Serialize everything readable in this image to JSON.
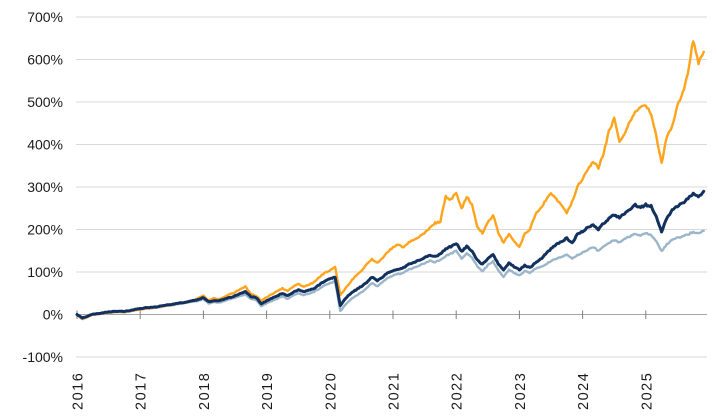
{
  "chart_data": {
    "type": "line",
    "title": "",
    "xlabel": "",
    "ylabel": "",
    "grid": "horizontal",
    "legend_position": "none",
    "ylim": [
      -100,
      700
    ],
    "y_tick_step_pct": 100,
    "y_tick_labels": [
      "700%",
      "600%",
      "500%",
      "400%",
      "300%",
      "200%",
      "100%",
      "0%",
      "-100%"
    ],
    "x_tick_labels": [
      "2016",
      "2017",
      "2018",
      "2019",
      "2020",
      "2021",
      "2022",
      "2023",
      "2024",
      "2025"
    ],
    "x_start_year": 2016,
    "points_per_year": 12,
    "unit": "percent-cumulative-return",
    "colors": {
      "grid": "#d9d9d9",
      "zero_axis": "#a6a6a6",
      "tick_mark": "#7f7f7f",
      "label_text": "#1a1a1a"
    },
    "series": [
      {
        "name": "light-blue-line",
        "color": "#9bb6c9",
        "stroke_width": 2.4,
        "values": [
          0,
          -11,
          -6,
          0,
          1,
          2,
          4,
          5,
          6,
          5,
          7,
          10,
          12,
          14,
          15,
          16,
          18,
          20,
          22,
          24,
          26,
          28,
          30,
          32,
          36,
          26,
          29,
          28,
          32,
          36,
          39,
          44,
          47,
          36,
          34,
          20,
          26,
          32,
          37,
          43,
          37,
          45,
          50,
          46,
          49,
          53,
          61,
          68,
          74,
          78,
          8,
          24,
          36,
          44,
          52,
          62,
          74,
          66,
          76,
          86,
          92,
          95,
          99,
          106,
          110,
          116,
          121,
          127,
          123,
          128,
          138,
          143,
          150,
          132,
          143,
          134,
          113,
          102,
          116,
          125,
          103,
          88,
          106,
          97,
          92,
          102,
          98,
          108,
          112,
          118,
          126,
          132,
          136,
          142,
          131,
          140,
          145,
          152,
          158,
          150,
          160,
          168,
          175,
          170,
          178,
          184,
          190,
          186,
          191,
          188,
          172,
          149,
          165,
          175,
          180,
          184,
          188,
          195,
          190,
          197
        ]
      },
      {
        "name": "orange-line",
        "color": "#ffa41c",
        "stroke_width": 2.4,
        "values": [
          0,
          -10,
          -6,
          0,
          1,
          3,
          5,
          6,
          7,
          6,
          8,
          10,
          12,
          14,
          15,
          17,
          19,
          21,
          23,
          26,
          27,
          29,
          33,
          38,
          44,
          33,
          38,
          36,
          42,
          48,
          52,
          60,
          66,
          48,
          44,
          33,
          40,
          48,
          55,
          62,
          55,
          65,
          72,
          66,
          70,
          76,
          88,
          98,
          104,
          112,
          46,
          62,
          78,
          92,
          102,
          118,
          130,
          121,
          132,
          148,
          158,
          165,
          158,
          170,
          176,
          183,
          192,
          205,
          215,
          218,
          278,
          270,
          288,
          248,
          278,
          258,
          205,
          192,
          215,
          235,
          192,
          168,
          190,
          172,
          158,
          190,
          200,
          235,
          250,
          268,
          285,
          272,
          258,
          240,
          265,
          300,
          320,
          340,
          360,
          345,
          380,
          430,
          460,
          405,
          425,
          455,
          475,
          490,
          495,
          470,
          420,
          355,
          420,
          440,
          490,
          520,
          570,
          645,
          592,
          618
        ]
      },
      {
        "name": "navy-line",
        "color": "#12315e",
        "stroke_width": 3,
        "values": [
          0,
          -8,
          -4,
          1,
          2,
          4,
          6,
          7,
          8,
          7,
          9,
          12,
          14,
          16,
          17,
          18,
          20,
          22,
          24,
          26,
          28,
          30,
          33,
          35,
          40,
          30,
          33,
          32,
          36,
          40,
          44,
          50,
          54,
          42,
          40,
          25,
          32,
          38,
          44,
          50,
          44,
          52,
          58,
          54,
          57,
          61,
          70,
          78,
          84,
          88,
          21,
          38,
          50,
          58,
          66,
          76,
          88,
          80,
          88,
          98,
          103,
          106,
          110,
          118,
          122,
          128,
          134,
          140,
          136,
          142,
          155,
          160,
          168,
          148,
          160,
          150,
          128,
          118,
          132,
          142,
          118,
          104,
          122,
          112,
          105,
          115,
          110,
          122,
          130,
          142,
          155,
          165,
          172,
          180,
          168,
          188,
          195,
          205,
          212,
          200,
          215,
          225,
          235,
          228,
          238,
          248,
          258,
          252,
          258,
          255,
          230,
          195,
          228,
          245,
          255,
          262,
          272,
          285,
          275,
          290
        ]
      }
    ]
  }
}
